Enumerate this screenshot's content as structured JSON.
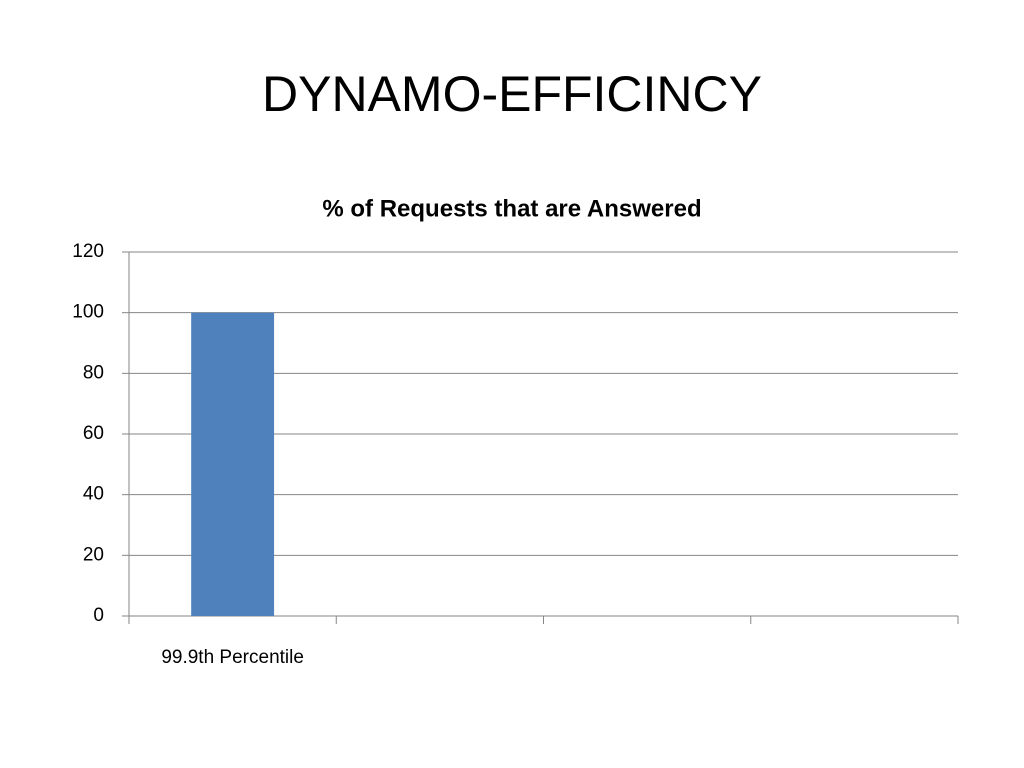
{
  "title": "DYNAMO-EFFICINCY",
  "chart_data": {
    "type": "bar",
    "title": "% of Requests that are Answered",
    "categories": [
      "99.9th Percentile",
      null,
      null,
      null
    ],
    "values": [
      100,
      null,
      null,
      null
    ],
    "color": "#4f81bd",
    "ylim": [
      0,
      120
    ],
    "yticks": [
      0,
      20,
      40,
      60,
      80,
      100,
      120
    ],
    "grid": true
  }
}
